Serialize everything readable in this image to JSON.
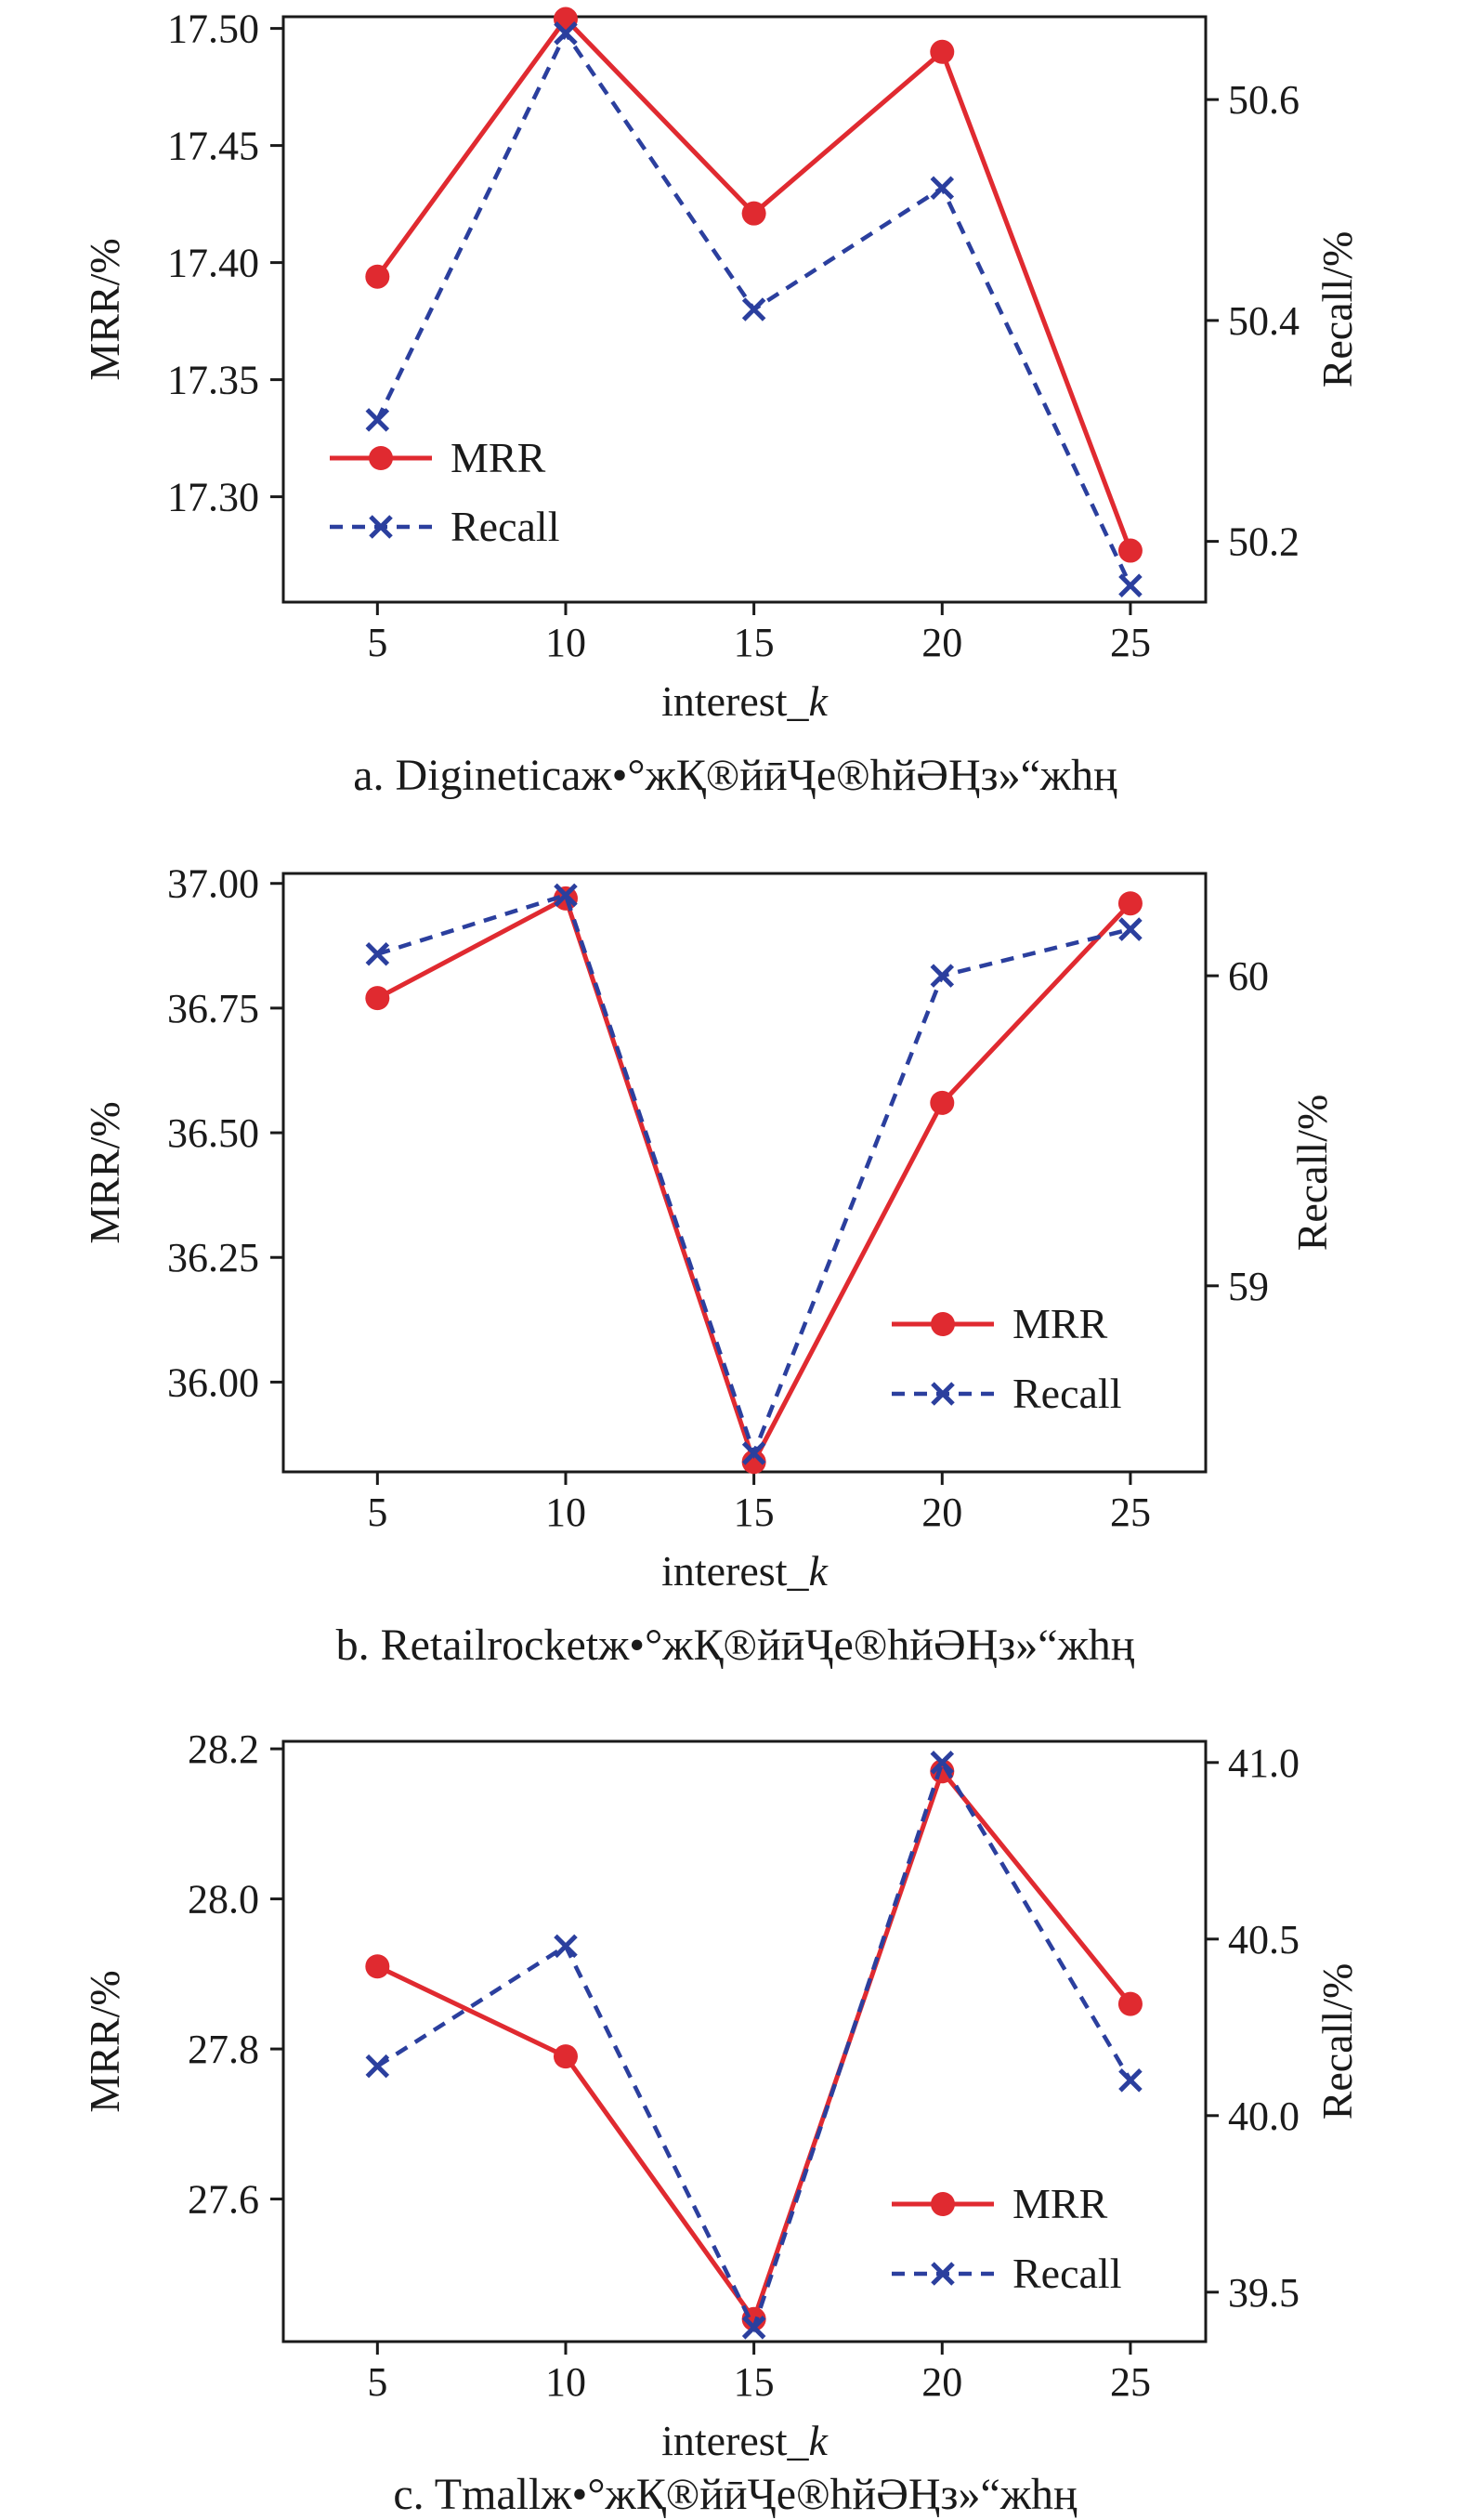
{
  "colors": {
    "mrr": "#e02a30",
    "recall": "#2b3f9e",
    "axis": "#1a1a1a"
  },
  "chart_data": [
    {
      "type": "line",
      "caption": "a. Digineticaж•°жҚ®йӣҶе®һйӘҢз»“жһң",
      "x": [
        5,
        10,
        15,
        20,
        25
      ],
      "xlabel_main": "interest_",
      "xlabel_italic": "k",
      "ylabel_left": "MRR/%",
      "ylabel_right": "Recall/%",
      "ylim_left": [
        17.255,
        17.505
      ],
      "ylim_right": [
        50.145,
        50.675
      ],
      "yticks_left": [
        {
          "v": 17.3,
          "label": "17.30"
        },
        {
          "v": 17.35,
          "label": "17.35"
        },
        {
          "v": 17.4,
          "label": "17.40"
        },
        {
          "v": 17.45,
          "label": "17.45"
        },
        {
          "v": 17.5,
          "label": "17.50"
        }
      ],
      "yticks_right": [
        {
          "v": 50.2,
          "label": "50.2"
        },
        {
          "v": 50.4,
          "label": "50.4"
        },
        {
          "v": 50.6,
          "label": "50.6"
        }
      ],
      "legend_position": "lower-left",
      "series": [
        {
          "name": "MRR",
          "axis": "left",
          "marker": "circle",
          "values": [
            17.394,
            17.504,
            17.421,
            17.49,
            17.277
          ]
        },
        {
          "name": "Recall",
          "axis": "right",
          "marker": "x",
          "values": [
            50.31,
            50.66,
            50.41,
            50.52,
            50.16
          ]
        }
      ]
    },
    {
      "type": "line",
      "caption": "b. Retailrocketж•°жҚ®йӣҶе®һйӘҢз»“жһң",
      "x": [
        5,
        10,
        15,
        20,
        25
      ],
      "xlabel_main": "interest_",
      "xlabel_italic": "k",
      "ylabel_left": "MRR/%",
      "ylabel_right": "Recall/%",
      "ylim_left": [
        35.82,
        37.02
      ],
      "ylim_right": [
        58.4,
        60.33
      ],
      "yticks_left": [
        {
          "v": 36.0,
          "label": "36.00"
        },
        {
          "v": 36.25,
          "label": "36.25"
        },
        {
          "v": 36.5,
          "label": "36.50"
        },
        {
          "v": 36.75,
          "label": "36.75"
        },
        {
          "v": 37.0,
          "label": "37.00"
        }
      ],
      "yticks_right": [
        {
          "v": 59,
          "label": "59"
        },
        {
          "v": 60,
          "label": "60"
        }
      ],
      "legend_position": "lower-right",
      "series": [
        {
          "name": "MRR",
          "axis": "left",
          "marker": "circle",
          "values": [
            36.77,
            36.97,
            35.84,
            36.56,
            36.96
          ]
        },
        {
          "name": "Recall",
          "axis": "right",
          "marker": "x",
          "values": [
            60.07,
            60.26,
            58.46,
            60.0,
            60.15
          ]
        }
      ]
    },
    {
      "type": "line",
      "caption": "c. Tmallж•°жҚ®йӣҶе®һйӘҢз»“жһң",
      "x": [
        5,
        10,
        15,
        20,
        25
      ],
      "xlabel_main": "interest_",
      "xlabel_italic": "k",
      "ylabel_left": "MRR/%",
      "ylabel_right": "Recall/%",
      "ylim_left": [
        27.41,
        28.21
      ],
      "ylim_right": [
        39.36,
        41.06
      ],
      "yticks_left": [
        {
          "v": 27.6,
          "label": "27.6"
        },
        {
          "v": 27.8,
          "label": "27.8"
        },
        {
          "v": 28.0,
          "label": "28.0"
        },
        {
          "v": 28.2,
          "label": "28.2"
        }
      ],
      "yticks_right": [
        {
          "v": 39.5,
          "label": "39.5"
        },
        {
          "v": 40.0,
          "label": "40.0"
        },
        {
          "v": 40.5,
          "label": "40.5"
        },
        {
          "v": 41.0,
          "label": "41.0"
        }
      ],
      "legend_position": "lower-right",
      "series": [
        {
          "name": "MRR",
          "axis": "left",
          "marker": "circle",
          "values": [
            27.91,
            27.79,
            27.44,
            28.17,
            27.86
          ]
        },
        {
          "name": "Recall",
          "axis": "right",
          "marker": "x",
          "values": [
            40.14,
            40.48,
            39.4,
            41.0,
            40.1
          ]
        }
      ]
    }
  ]
}
